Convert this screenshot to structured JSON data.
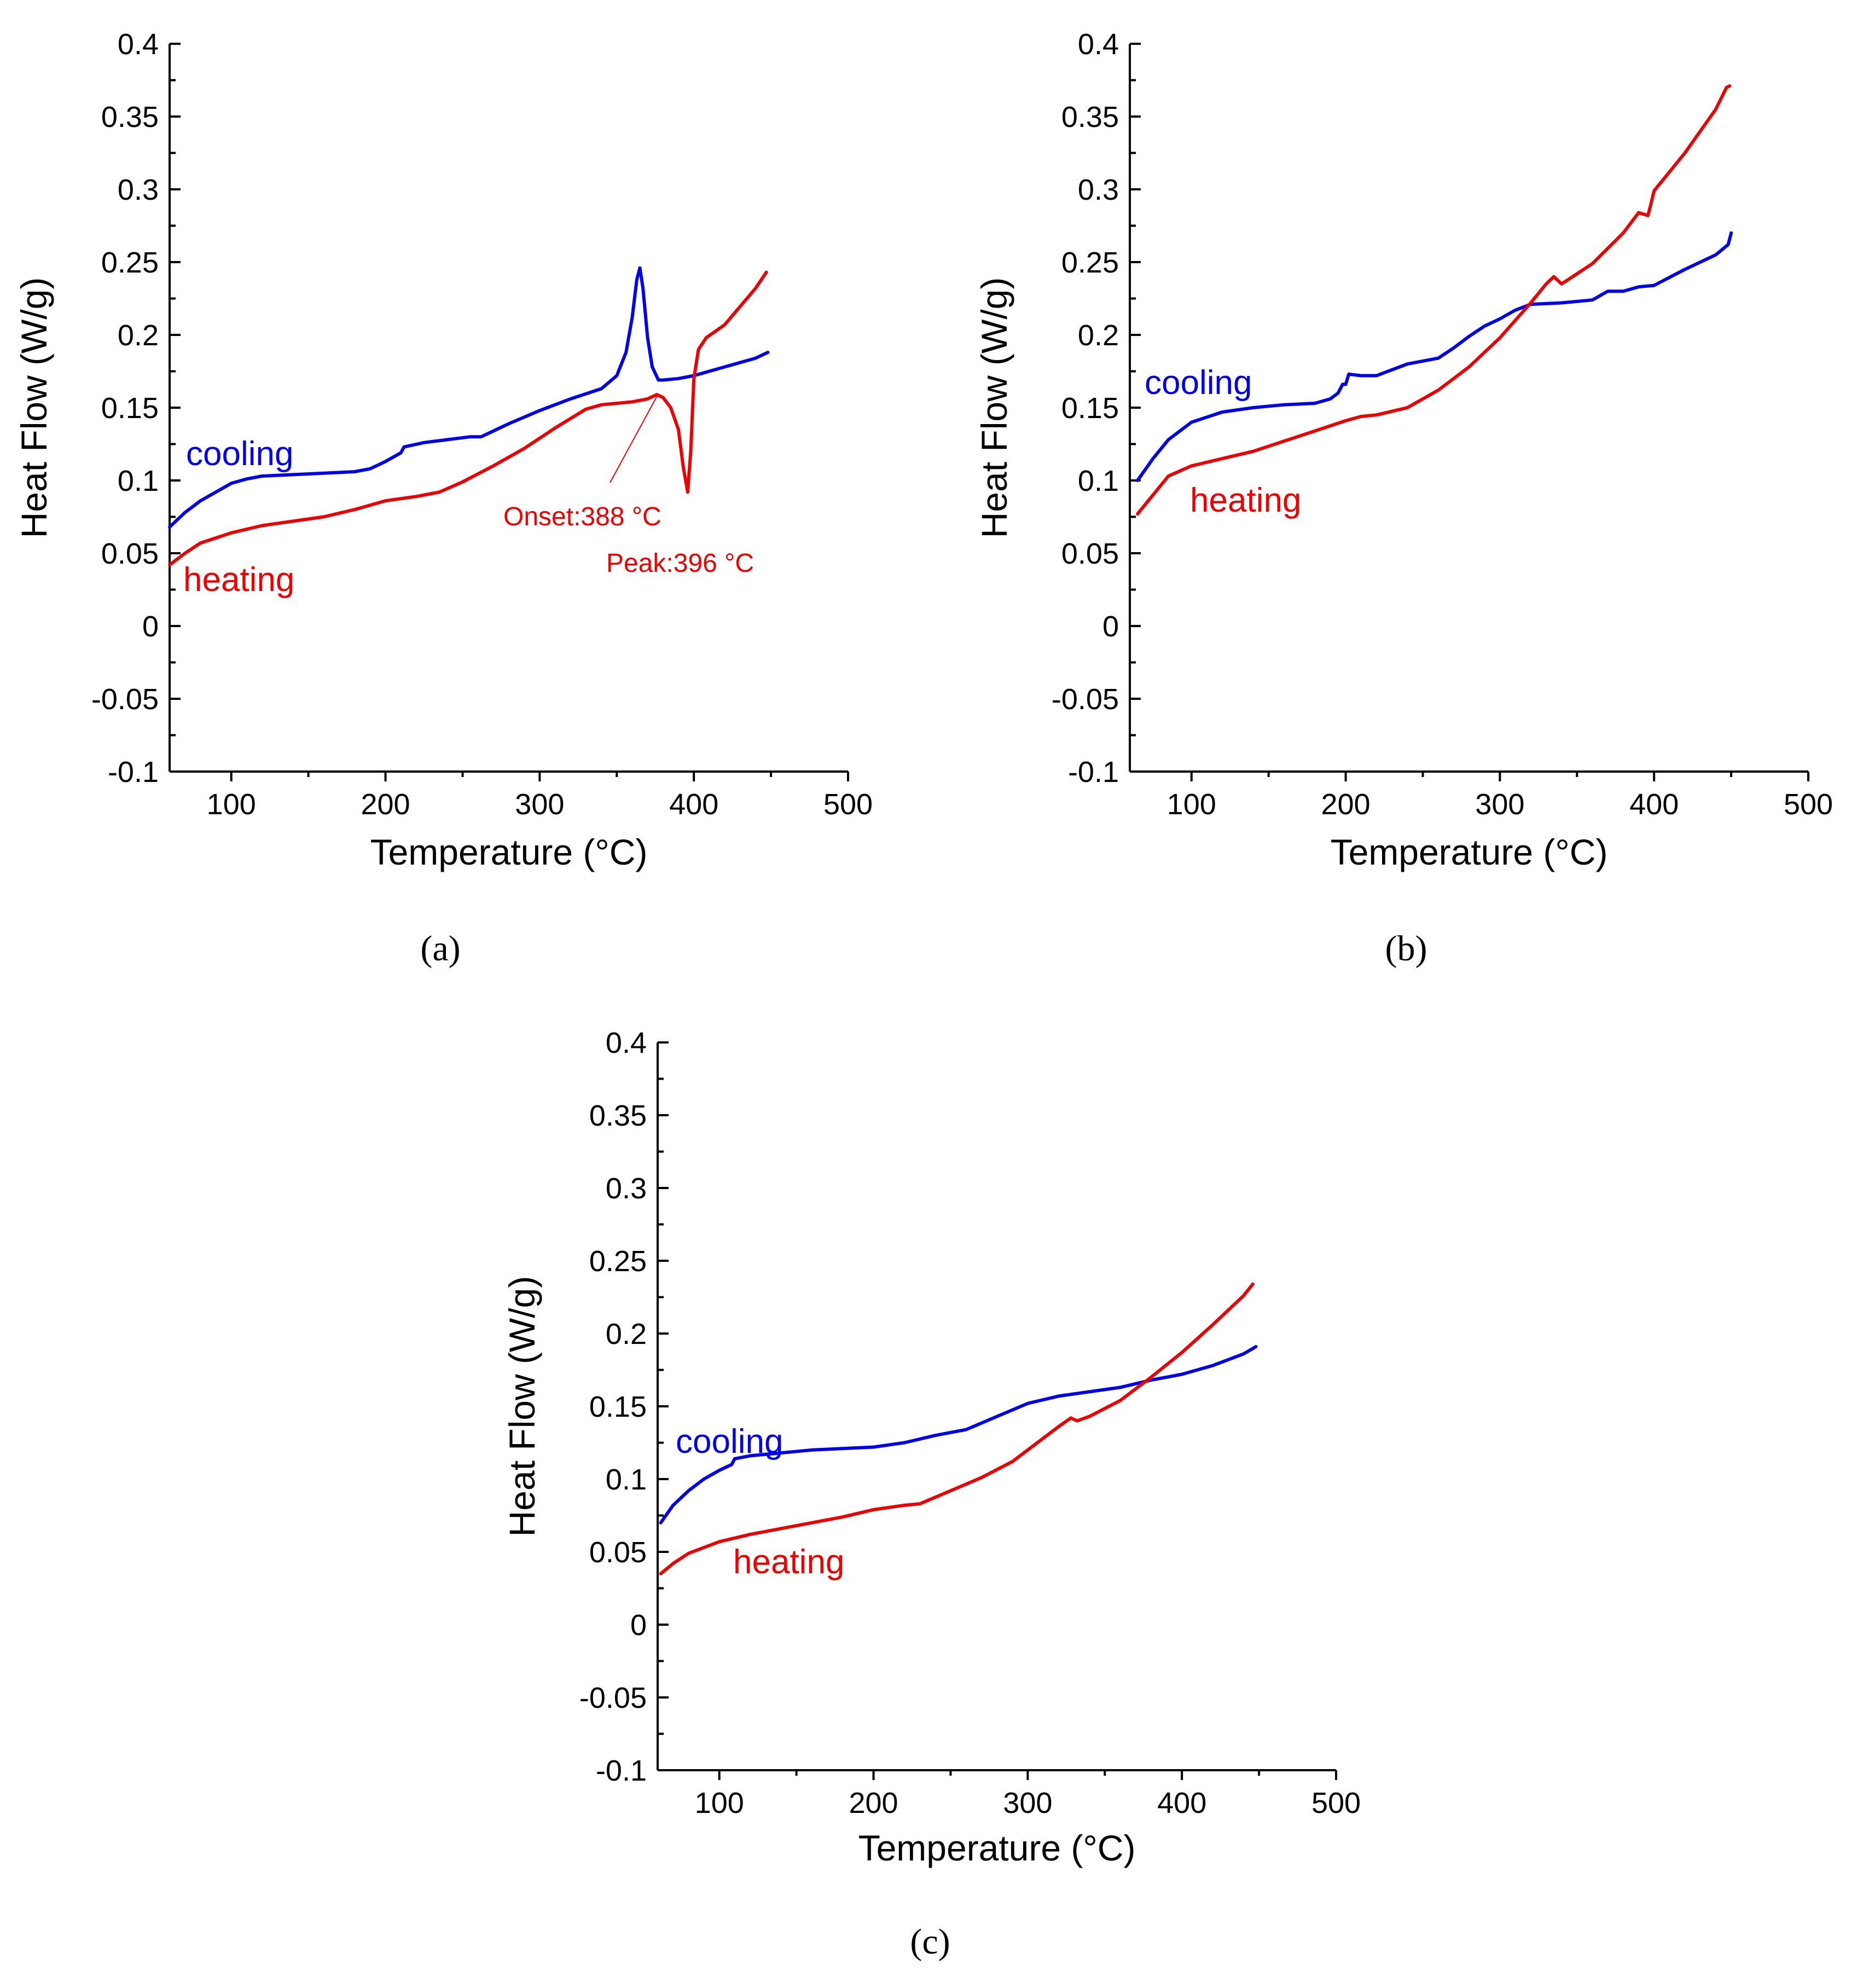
{
  "colors": {
    "cooling": "#0000ee",
    "heating": "#ee0000",
    "axis": "#000000"
  },
  "chart_data": [
    {
      "type": "line",
      "panel_label": "(a)",
      "xlabel": "Temperature (°C)",
      "ylabel": "Heat Flow (W/g)",
      "xlim": [
        60,
        500
      ],
      "ylim": [
        -0.1,
        0.4
      ],
      "xticks": [
        100,
        200,
        300,
        400,
        500
      ],
      "yticks": [
        -0.1,
        -0.05,
        0,
        0.05,
        0.1,
        0.15,
        0.2,
        0.25,
        0.3,
        0.35,
        0.4
      ],
      "xtick_labels": [
        "100",
        "200",
        "300",
        "400",
        "500"
      ],
      "ytick_labels": [
        "-0.1",
        "-0.05",
        "0",
        "0.05",
        "0.1",
        "0.15",
        "0.2",
        "0.25",
        "0.3",
        "0.35",
        "0.4"
      ],
      "series": [
        {
          "name": "cooling",
          "label": "cooling",
          "color": "#0000ee",
          "x": [
            60,
            70,
            80,
            90,
            100,
            110,
            120,
            140,
            160,
            180,
            190,
            200,
            210,
            212,
            225,
            240,
            255,
            262,
            270,
            280,
            300,
            320,
            340,
            350,
            356,
            360,
            363,
            365,
            367,
            370,
            373,
            377,
            380,
            390,
            400,
            420,
            440,
            448
          ],
          "y": [
            0.068,
            0.078,
            0.086,
            0.092,
            0.098,
            0.101,
            0.103,
            0.104,
            0.105,
            0.106,
            0.108,
            0.113,
            0.119,
            0.123,
            0.126,
            0.128,
            0.13,
            0.13,
            0.134,
            0.139,
            0.148,
            0.156,
            0.163,
            0.172,
            0.188,
            0.212,
            0.238,
            0.246,
            0.232,
            0.198,
            0.178,
            0.169,
            0.169,
            0.17,
            0.172,
            0.178,
            0.184,
            0.188
          ]
        },
        {
          "name": "heating",
          "label": "heating",
          "color": "#ee0000",
          "x": [
            60,
            70,
            80,
            100,
            120,
            140,
            160,
            180,
            200,
            220,
            235,
            250,
            270,
            290,
            310,
            330,
            340,
            360,
            370,
            376,
            380,
            385,
            390,
            393,
            396,
            398,
            400,
            403,
            408,
            420,
            440,
            447
          ],
          "y": [
            0.042,
            0.05,
            0.057,
            0.064,
            0.069,
            0.072,
            0.075,
            0.08,
            0.086,
            0.089,
            0.092,
            0.099,
            0.11,
            0.122,
            0.136,
            0.149,
            0.152,
            0.154,
            0.156,
            0.159,
            0.157,
            0.15,
            0.135,
            0.11,
            0.092,
            0.12,
            0.17,
            0.19,
            0.198,
            0.207,
            0.232,
            0.243
          ]
        }
      ],
      "annotations": [
        "Onset:388 °C",
        "Peak:396 °C"
      ]
    },
    {
      "type": "line",
      "panel_label": "(b)",
      "xlabel": "Temperature (°C)",
      "ylabel": "Heat Flow (W/g)",
      "xlim": [
        60,
        500
      ],
      "ylim": [
        -0.1,
        0.4
      ],
      "xticks": [
        100,
        200,
        300,
        400,
        500
      ],
      "yticks": [
        -0.1,
        -0.05,
        0,
        0.05,
        0.1,
        0.15,
        0.2,
        0.25,
        0.3,
        0.35,
        0.4
      ],
      "xtick_labels": [
        "100",
        "200",
        "300",
        "400",
        "500"
      ],
      "ytick_labels": [
        "-0.1",
        "-0.05",
        "0",
        "0.05",
        "0.1",
        "0.15",
        "0.2",
        "0.25",
        "0.3",
        "0.35",
        "0.4"
      ],
      "series": [
        {
          "name": "cooling",
          "label": "cooling",
          "color": "#0000ee",
          "x": [
            65,
            75,
            85,
            100,
            120,
            140,
            160,
            180,
            190,
            195,
            198,
            200,
            202,
            210,
            220,
            230,
            240,
            260,
            270,
            280,
            290,
            300,
            310,
            320,
            340,
            360,
            370,
            375,
            380,
            390,
            400,
            420,
            440,
            448,
            450
          ],
          "y": [
            0.1,
            0.115,
            0.128,
            0.14,
            0.147,
            0.15,
            0.152,
            0.153,
            0.156,
            0.16,
            0.166,
            0.166,
            0.173,
            0.172,
            0.172,
            0.176,
            0.18,
            0.184,
            0.191,
            0.199,
            0.206,
            0.211,
            0.217,
            0.221,
            0.222,
            0.224,
            0.23,
            0.23,
            0.23,
            0.233,
            0.234,
            0.245,
            0.255,
            0.262,
            0.27
          ]
        },
        {
          "name": "heating",
          "label": "heating",
          "color": "#ee0000",
          "x": [
            65,
            75,
            85,
            100,
            120,
            140,
            160,
            180,
            200,
            210,
            220,
            240,
            260,
            280,
            300,
            320,
            330,
            335,
            340,
            360,
            380,
            390,
            393,
            396,
            398,
            400,
            420,
            440,
            447,
            449
          ],
          "y": [
            0.077,
            0.09,
            0.103,
            0.11,
            0.115,
            0.12,
            0.127,
            0.134,
            0.141,
            0.144,
            0.145,
            0.15,
            0.162,
            0.178,
            0.198,
            0.222,
            0.235,
            0.24,
            0.235,
            0.249,
            0.27,
            0.284,
            0.283,
            0.282,
            0.29,
            0.299,
            0.325,
            0.355,
            0.37,
            0.371
          ]
        }
      ],
      "annotations": []
    },
    {
      "type": "line",
      "panel_label": "(c)",
      "xlabel": "Temperature (°C)",
      "ylabel": "Heat Flow (W/g)",
      "xlim": [
        60,
        500
      ],
      "ylim": [
        -0.1,
        0.4
      ],
      "xticks": [
        100,
        200,
        300,
        400,
        500
      ],
      "yticks": [
        -0.1,
        -0.05,
        0,
        0.05,
        0.1,
        0.15,
        0.2,
        0.25,
        0.3,
        0.35,
        0.4
      ],
      "xtick_labels": [
        "100",
        "200",
        "300",
        "400",
        "500"
      ],
      "ytick_labels": [
        "-0.1",
        "-0.05",
        "0",
        "0.05",
        "0.1",
        "0.15",
        "0.2",
        "0.25",
        "0.3",
        "0.35",
        "0.4"
      ],
      "series": [
        {
          "name": "cooling",
          "label": "cooling",
          "color": "#0000ee",
          "x": [
            62,
            70,
            80,
            90,
            100,
            108,
            110,
            120,
            140,
            160,
            180,
            200,
            220,
            240,
            260,
            280,
            300,
            320,
            340,
            360,
            380,
            400,
            420,
            440,
            448
          ],
          "y": [
            0.07,
            0.082,
            0.092,
            0.1,
            0.106,
            0.11,
            0.114,
            0.116,
            0.118,
            0.12,
            0.121,
            0.122,
            0.125,
            0.13,
            0.134,
            0.143,
            0.152,
            0.157,
            0.16,
            0.163,
            0.168,
            0.172,
            0.178,
            0.186,
            0.191
          ]
        },
        {
          "name": "heating",
          "label": "heating",
          "color": "#ee0000",
          "x": [
            62,
            70,
            80,
            100,
            120,
            140,
            160,
            180,
            200,
            220,
            230,
            250,
            270,
            290,
            300,
            310,
            320,
            328,
            332,
            340,
            360,
            380,
            400,
            420,
            440,
            446
          ],
          "y": [
            0.035,
            0.042,
            0.049,
            0.057,
            0.062,
            0.066,
            0.07,
            0.074,
            0.079,
            0.082,
            0.083,
            0.092,
            0.101,
            0.112,
            0.12,
            0.128,
            0.136,
            0.142,
            0.14,
            0.143,
            0.154,
            0.17,
            0.187,
            0.206,
            0.226,
            0.234
          ]
        }
      ],
      "annotations": []
    }
  ]
}
